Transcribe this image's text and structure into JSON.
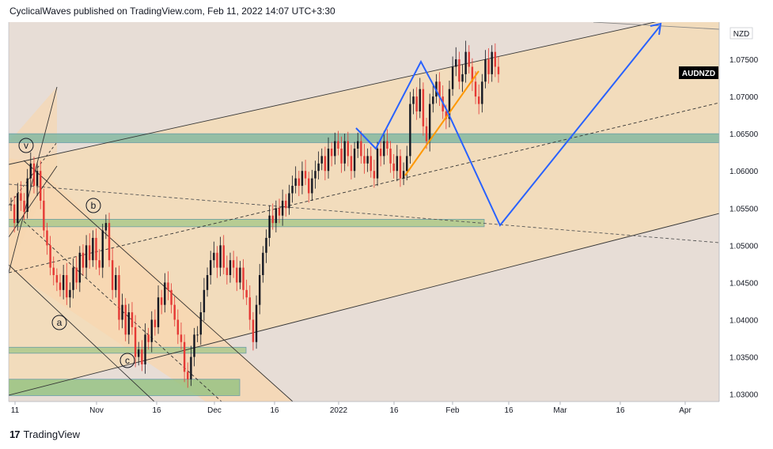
{
  "header": {
    "text": "CyclicalWaves published on TradingView.com, Feb 11, 2022 14:07 UTC+3:30"
  },
  "footer": {
    "logo_glyph": "17",
    "brand": "TradingView"
  },
  "chart_data": {
    "type": "candlestick",
    "symbol": "AUDNZD",
    "currency": "NZD",
    "x_ticks": [
      "11",
      "Nov",
      "16",
      "Dec",
      "16",
      "2022",
      "16",
      "Feb",
      "16",
      "Mar",
      "16",
      "Apr"
    ],
    "y_ticks": [
      "1.07500",
      "1.07000",
      "1.06500",
      "1.06000",
      "1.05500",
      "1.05000",
      "1.04500",
      "1.04000",
      "1.03500",
      "1.03000"
    ],
    "ylim": [
      1.029,
      1.08
    ],
    "last_price": 1.073,
    "wave_labels": [
      "v",
      "b",
      "a",
      "c"
    ],
    "support_zones": [
      {
        "low": 1.0638,
        "high": 1.065
      },
      {
        "low": 1.0525,
        "high": 1.0535
      },
      {
        "low": 1.0355,
        "high": 1.0363
      },
      {
        "low": 1.0298,
        "high": 1.032
      }
    ],
    "price_path": [
      1.0555,
      1.053,
      1.057,
      1.056,
      1.0545,
      1.059,
      1.061,
      1.058,
      1.06,
      1.056,
      1.052,
      1.05,
      1.047,
      1.046,
      1.045,
      1.044,
      1.046,
      1.043,
      1.044,
      1.047,
      1.045,
      1.049,
      1.047,
      1.05,
      1.048,
      1.051,
      1.048,
      1.047,
      1.052,
      1.053,
      1.048,
      1.044,
      1.046,
      1.04,
      1.042,
      1.038,
      1.041,
      1.039,
      1.035,
      1.036,
      1.034,
      1.038,
      1.037,
      1.04,
      1.039,
      1.043,
      1.042,
      1.045,
      1.044,
      1.042,
      1.04,
      1.038,
      1.037,
      1.033,
      1.032,
      1.035,
      1.038,
      1.038,
      1.041,
      1.044,
      1.046,
      1.048,
      1.049,
      1.047,
      1.05,
      1.047,
      1.046,
      1.048,
      1.047,
      1.045,
      1.047,
      1.044,
      1.043,
      1.04,
      1.037,
      1.042,
      1.046,
      1.049,
      1.051,
      1.054,
      1.053,
      1.055,
      1.054,
      1.056,
      1.055,
      1.057,
      1.058,
      1.059,
      1.058,
      1.06,
      1.059,
      1.057,
      1.059,
      1.06,
      1.061,
      1.062,
      1.06,
      1.063,
      1.062,
      1.064,
      1.063,
      1.061,
      1.064,
      1.062,
      1.06,
      1.063,
      1.064,
      1.062,
      1.061,
      1.062,
      1.06,
      1.059,
      1.063,
      1.062,
      1.064,
      1.063,
      1.061,
      1.06,
      1.062,
      1.059,
      1.06,
      1.062,
      1.069,
      1.07,
      1.068,
      1.071,
      1.066,
      1.064,
      1.069,
      1.07,
      1.072,
      1.07,
      1.068,
      1.067,
      1.071,
      1.074,
      1.075,
      1.072,
      1.073,
      1.076,
      1.074,
      1.072,
      1.07,
      1.069,
      1.072,
      1.075,
      1.073,
      1.076,
      1.074,
      1.073
    ]
  }
}
